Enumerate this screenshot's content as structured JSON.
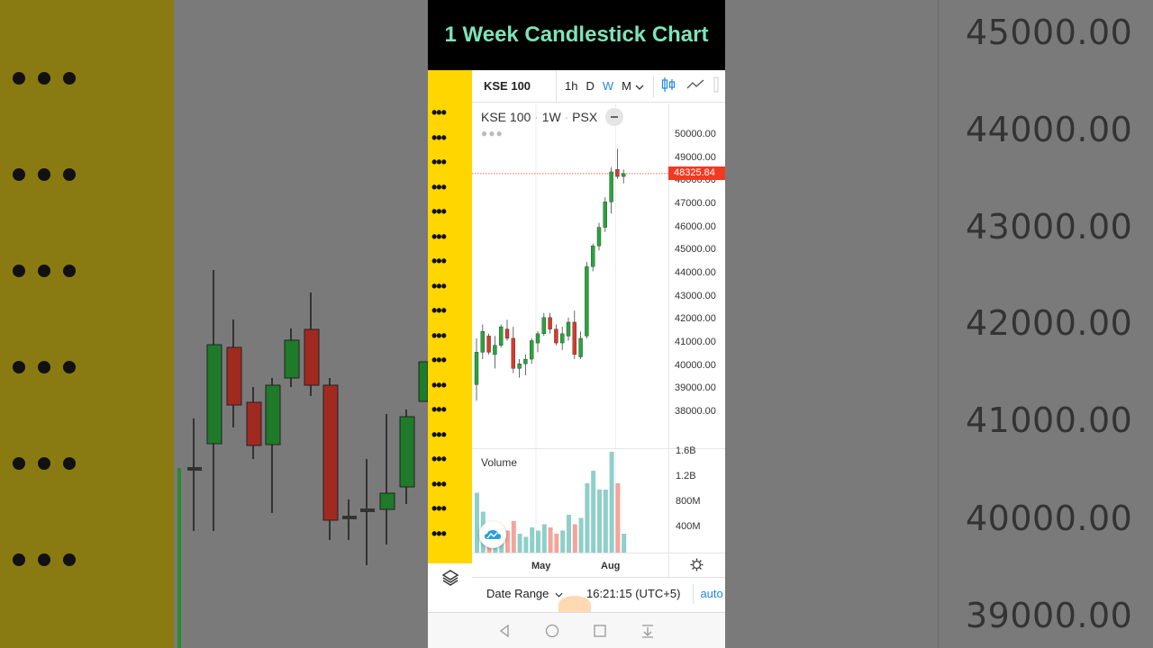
{
  "title": "1 Week Candlestick Chart",
  "toolbar": {
    "symbol": "KSE 100",
    "intervals": [
      "1h",
      "D",
      "W",
      "M"
    ],
    "active_interval": "W"
  },
  "legend": {
    "symbol": "KSE 100",
    "interval": "1W",
    "exchange": "PSX"
  },
  "price_axis": [
    "50000.00",
    "49000.00",
    "48000.00",
    "47000.00",
    "46000.00",
    "45000.00",
    "44000.00",
    "43000.00",
    "42000.00",
    "41000.00",
    "40000.00",
    "39000.00",
    "38000.00"
  ],
  "last_price": "48325.84",
  "volume": {
    "label": "Volume",
    "ticks": [
      "1.6B",
      "1.2B",
      "800M",
      "400M"
    ]
  },
  "time_axis": [
    "May",
    "Aug"
  ],
  "bottom": {
    "date_range": "Date Range",
    "clock": "16:21:15 (UTC+5)",
    "auto": "auto"
  },
  "background": {
    "prices": [
      "45000.00",
      "44000.00",
      "43000.00",
      "42000.00",
      "41000.00",
      "40000.00",
      "39000.00"
    ]
  },
  "colors": {
    "up": "#26a63a",
    "down": "#d83a2b",
    "vol_up": "#8fcfc9",
    "vol_down": "#f2a59c",
    "title": "#7de3b8",
    "accent": "#1e88e5",
    "yellow": "#ffd600"
  },
  "chart_data": {
    "type": "candlestick",
    "interval": "1W",
    "candles": [
      {
        "o": 39200,
        "h": 41200,
        "l": 38500,
        "c": 40600
      },
      {
        "o": 40600,
        "h": 41800,
        "l": 40300,
        "c": 41500
      },
      {
        "o": 41300,
        "h": 41400,
        "l": 40500,
        "c": 40600
      },
      {
        "o": 40500,
        "h": 41300,
        "l": 39900,
        "c": 40900
      },
      {
        "o": 40900,
        "h": 41800,
        "l": 40800,
        "c": 41700
      },
      {
        "o": 41600,
        "h": 42000,
        "l": 41100,
        "c": 41200
      },
      {
        "o": 41200,
        "h": 41700,
        "l": 39700,
        "c": 39900
      },
      {
        "o": 39900,
        "h": 40300,
        "l": 39500,
        "c": 40100
      },
      {
        "o": 40100,
        "h": 40500,
        "l": 39600,
        "c": 40300
      },
      {
        "o": 40300,
        "h": 41200,
        "l": 40100,
        "c": 41100
      },
      {
        "o": 41000,
        "h": 41500,
        "l": 40600,
        "c": 41400
      },
      {
        "o": 41400,
        "h": 42300,
        "l": 41300,
        "c": 42100
      },
      {
        "o": 42100,
        "h": 42300,
        "l": 41400,
        "c": 41600
      },
      {
        "o": 41600,
        "h": 41800,
        "l": 40900,
        "c": 41000
      },
      {
        "o": 41000,
        "h": 41700,
        "l": 40700,
        "c": 41400
      },
      {
        "o": 41300,
        "h": 42100,
        "l": 41100,
        "c": 41900
      },
      {
        "o": 41900,
        "h": 42400,
        "l": 40300,
        "c": 40500
      },
      {
        "o": 40400,
        "h": 41500,
        "l": 40300,
        "c": 41200
      },
      {
        "o": 41300,
        "h": 44500,
        "l": 41200,
        "c": 44300
      },
      {
        "o": 44300,
        "h": 45300,
        "l": 44100,
        "c": 45200
      },
      {
        "o": 45200,
        "h": 46200,
        "l": 45000,
        "c": 46000
      },
      {
        "o": 46000,
        "h": 47300,
        "l": 45800,
        "c": 47100
      },
      {
        "o": 47100,
        "h": 48600,
        "l": 46600,
        "c": 48400
      },
      {
        "o": 48500,
        "h": 49400,
        "l": 48100,
        "c": 48200
      },
      {
        "o": 48200,
        "h": 48500,
        "l": 47900,
        "c": 48325.84
      }
    ],
    "volumes": [
      0.95,
      0.65,
      0.3,
      0.25,
      0.2,
      0.35,
      0.5,
      0.3,
      0.25,
      0.4,
      0.35,
      0.45,
      0.4,
      0.3,
      0.35,
      0.6,
      0.45,
      0.55,
      1.1,
      1.3,
      1.0,
      1.0,
      1.6,
      1.1,
      0.3
    ],
    "volume_unit": "B",
    "ylim": [
      37500,
      50500
    ],
    "time_labels": [
      {
        "label": "May",
        "index": 10
      },
      {
        "label": "Aug",
        "index": 23
      }
    ]
  }
}
